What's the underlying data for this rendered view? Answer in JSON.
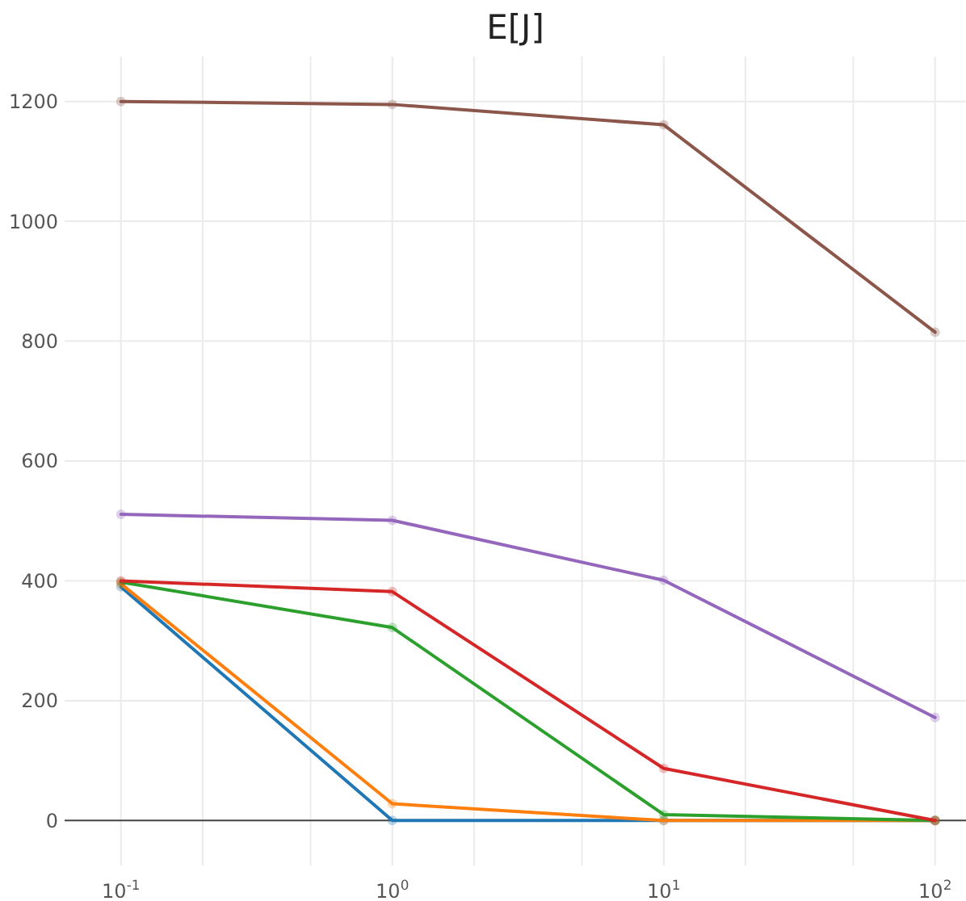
{
  "chart_data": {
    "type": "line",
    "title": "E[J]",
    "x": [
      0.1,
      1,
      10,
      100
    ],
    "log": "x",
    "grid": true,
    "marker": "circle",
    "line_style": "solid",
    "xlim": [
      0.062,
      130
    ],
    "ylim": [
      -75,
      1275
    ],
    "xticks": [
      {
        "value": 0.1,
        "label": "10$^{-1}$"
      },
      {
        "value": 0.2,
        "label": null
      },
      {
        "value": 0.5,
        "label": null
      },
      {
        "value": 1,
        "label": "10$^{0}$"
      },
      {
        "value": 2,
        "label": null
      },
      {
        "value": 5,
        "label": null
      },
      {
        "value": 10,
        "label": "10$^{1}$"
      },
      {
        "value": 20,
        "label": null
      },
      {
        "value": 50,
        "label": null
      },
      {
        "value": 100,
        "label": "10$^{2}$"
      }
    ],
    "yticks": [
      0,
      200,
      400,
      600,
      800,
      1000,
      1200
    ],
    "series": [
      {
        "color": "#1f77b4",
        "values": [
          390,
          0,
          0,
          0
        ]
      },
      {
        "color": "#ff7f0e",
        "values": [
          395,
          28,
          0,
          0
        ]
      },
      {
        "color": "#2ca02c",
        "values": [
          398,
          322,
          10,
          0
        ]
      },
      {
        "color": "#d62728",
        "values": [
          400,
          382,
          87,
          0
        ]
      },
      {
        "color": "#9467bd",
        "values": [
          511,
          501,
          401,
          172
        ]
      },
      {
        "color": "#8c564b",
        "values": [
          1200,
          1195,
          1161,
          815
        ]
      }
    ]
  }
}
